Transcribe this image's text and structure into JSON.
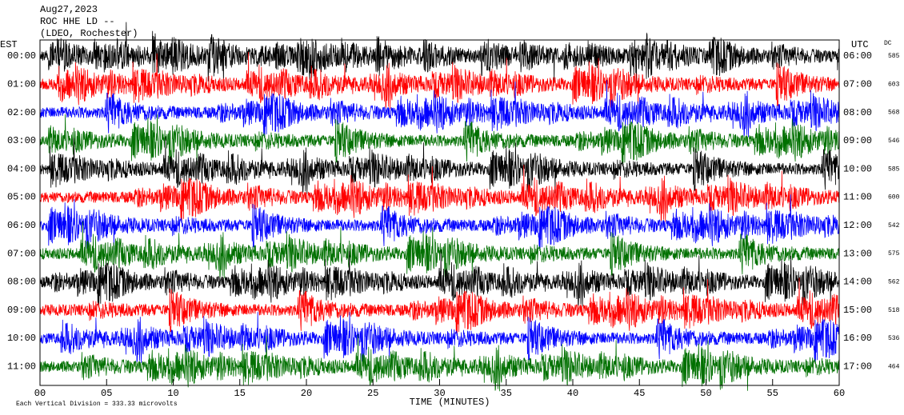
{
  "chart_data": {
    "type": "helicorder",
    "title_lines": [
      "Aug27,2023",
      "ROC HHE LD --",
      "(LDEO, Rochester)"
    ],
    "left_axis_label": "EST",
    "right_axis_label": "UTC",
    "dc_label": "DC",
    "xlabel": "TIME (MINUTES)",
    "footnote": "Each Vertical Division = 333.33 microvolts",
    "xlim": [
      0,
      60
    ],
    "xticks": [
      {
        "value": 0,
        "label": "00"
      },
      {
        "value": 5,
        "label": "05"
      },
      10,
      15,
      20,
      25,
      30,
      35,
      40,
      45,
      50,
      55,
      60
    ],
    "rows": [
      {
        "est": "00:00",
        "utc": "06:00",
        "dc": 585,
        "color": "#000000"
      },
      {
        "est": "01:00",
        "utc": "07:00",
        "dc": 603,
        "color": "#ff0000"
      },
      {
        "est": "02:00",
        "utc": "08:00",
        "dc": 568,
        "color": "#0000ff"
      },
      {
        "est": "03:00",
        "utc": "09:00",
        "dc": 546,
        "color": "#007000"
      },
      {
        "est": "04:00",
        "utc": "10:00",
        "dc": 585,
        "color": "#000000"
      },
      {
        "est": "05:00",
        "utc": "11:00",
        "dc": 600,
        "color": "#ff0000"
      },
      {
        "est": "06:00",
        "utc": "12:00",
        "dc": 542,
        "color": "#0000ff"
      },
      {
        "est": "07:00",
        "utc": "13:00",
        "dc": 575,
        "color": "#007000"
      },
      {
        "est": "08:00",
        "utc": "14:00",
        "dc": 562,
        "color": "#000000"
      },
      {
        "est": "09:00",
        "utc": "15:00",
        "dc": 518,
        "color": "#ff0000"
      },
      {
        "est": "10:00",
        "utc": "16:00",
        "dc": 536,
        "color": "#0000ff"
      },
      {
        "est": "11:00",
        "utc": "17:00",
        "dc": 464,
        "color": "#007000"
      }
    ]
  }
}
